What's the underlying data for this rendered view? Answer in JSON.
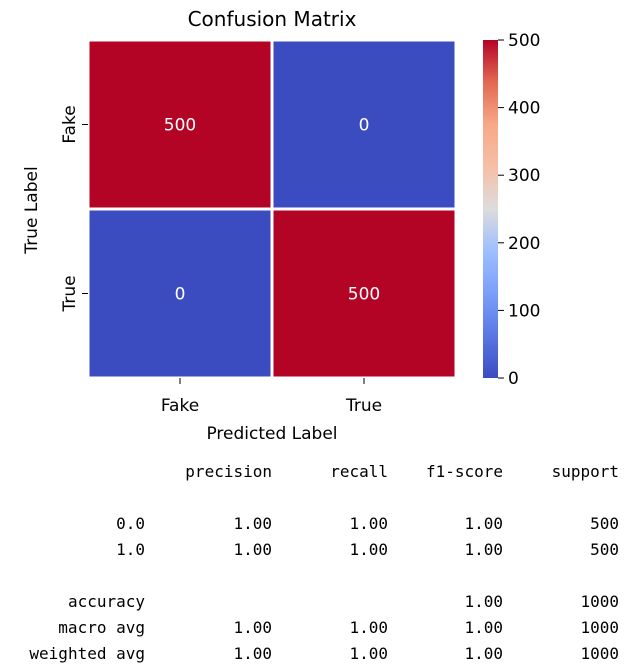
{
  "chart_data": {
    "type": "heatmap",
    "title": "Confusion Matrix",
    "xlabel": "Predicted Label",
    "ylabel": "True Label",
    "x_categories": [
      "Fake",
      "True"
    ],
    "y_categories": [
      "Fake",
      "True"
    ],
    "values": [
      [
        500,
        0
      ],
      [
        0,
        500
      ]
    ],
    "colormap": "coolwarm",
    "color_low": "#3b4cc0",
    "color_high": "#b40426",
    "colorbar": {
      "min": 0,
      "max": 500,
      "ticks": [
        "0",
        "100",
        "200",
        "300",
        "400",
        "500"
      ]
    }
  },
  "report": {
    "header": [
      "precision",
      "recall",
      "f1-score",
      "support"
    ],
    "rows": [
      {
        "label": "0.0",
        "precision": "1.00",
        "recall": "1.00",
        "f1": "1.00",
        "support": "500"
      },
      {
        "label": "1.0",
        "precision": "1.00",
        "recall": "1.00",
        "f1": "1.00",
        "support": "500"
      },
      {
        "label": "accuracy",
        "precision": "",
        "recall": "",
        "f1": "1.00",
        "support": "1000"
      },
      {
        "label": "macro avg",
        "precision": "1.00",
        "recall": "1.00",
        "f1": "1.00",
        "support": "1000"
      },
      {
        "label": "weighted avg",
        "precision": "1.00",
        "recall": "1.00",
        "f1": "1.00",
        "support": "1000"
      }
    ]
  }
}
